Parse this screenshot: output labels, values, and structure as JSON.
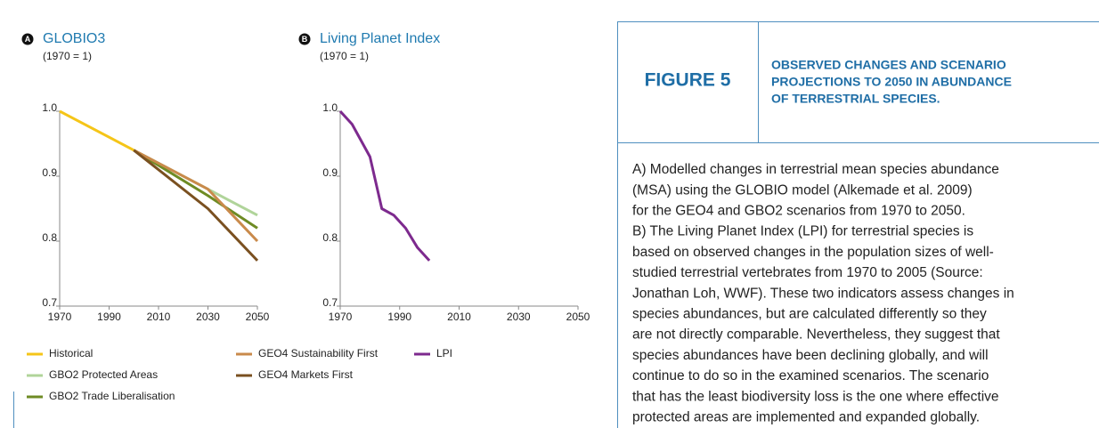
{
  "chart_data": [
    {
      "type": "line",
      "marker": "A",
      "title": "GLOBIO3",
      "subtitle": "(1970 = 1)",
      "xlim": [
        1970,
        2050
      ],
      "xticks": [
        1970,
        1990,
        2010,
        2030,
        2050
      ],
      "ylim": [
        0.7,
        1.0
      ],
      "yticks": [
        0.7,
        0.8,
        0.9,
        {
          "value": 1.0,
          "label": "1.0"
        }
      ],
      "grid": false,
      "series": [
        {
          "name": "Historical",
          "color": "#f5c518",
          "x": [
            1970,
            2000
          ],
          "values": [
            1.0,
            0.94
          ]
        },
        {
          "name": "GBO2 Protected Areas",
          "color": "#b0d49a",
          "x": [
            2000,
            2030,
            2050
          ],
          "values": [
            0.94,
            0.88,
            0.84
          ]
        },
        {
          "name": "GBO2 Trade Liberalisation",
          "color": "#6e8b24",
          "x": [
            2000,
            2030,
            2050
          ],
          "values": [
            0.94,
            0.87,
            0.82
          ]
        },
        {
          "name": "GEO4 Sustainability First",
          "color": "#c98a4b",
          "x": [
            2000,
            2030,
            2050
          ],
          "values": [
            0.94,
            0.88,
            0.8
          ]
        },
        {
          "name": "GEO4 Markets First",
          "color": "#7a5020",
          "x": [
            2000,
            2030,
            2050
          ],
          "values": [
            0.94,
            0.85,
            0.77
          ]
        }
      ]
    },
    {
      "type": "line",
      "marker": "B",
      "title": "Living Planet Index",
      "subtitle": "(1970 = 1)",
      "xlim": [
        1970,
        2050
      ],
      "xticks": [
        1970,
        1990,
        2010,
        2030,
        2050
      ],
      "ylim": [
        0.7,
        1.0
      ],
      "yticks": [
        0.7,
        0.8,
        0.9,
        {
          "value": 1.0,
          "label": "1.0"
        }
      ],
      "grid": false,
      "series": [
        {
          "name": "LPI",
          "color": "#7d2a8e",
          "x": [
            1970,
            1974,
            1980,
            1984,
            1988,
            1992,
            1996,
            2000
          ],
          "values": [
            1.0,
            0.98,
            0.93,
            0.85,
            0.84,
            0.82,
            0.79,
            0.77
          ]
        }
      ]
    }
  ],
  "figure": {
    "label": "FIGURE 5",
    "title_lines": [
      "OBSERVED CHANGES AND SCENARIO",
      "PROJECTIONS TO 2050 IN ABUNDANCE",
      "OF TERRESTRIAL SPECIES."
    ],
    "caption_lines": [
      "A) Modelled changes in terrestrial mean species abundance",
      "(MSA) using the GLOBIO model (Alkemade et al. 2009)",
      "for the GEO4 and GBO2 scenarios from 1970 to 2050.",
      "B) The Living Planet Index (LPI) for terrestrial species is",
      "based on observed changes in the population sizes of well-",
      "studied terrestrial vertebrates from 1970 to 2005 (Source:",
      "Jonathan Loh, WWF). These two indicators assess changes in",
      "species abundances, but are calculated differently so they",
      "are not directly comparable. Nevertheless, they suggest that",
      "species abundances have been declining globally, and will",
      "continue to do so in the examined scenarios. The scenario",
      "that has the least biodiversity loss is the one where effective",
      "protected areas are implemented and expanded globally."
    ]
  }
}
